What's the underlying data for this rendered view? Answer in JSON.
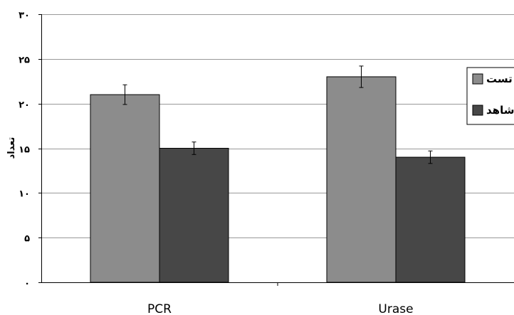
{
  "chart_data": {
    "type": "bar",
    "title": "",
    "xlabel": "",
    "ylabel": "تعداد",
    "categories": [
      "PCR",
      "Urase"
    ],
    "series": [
      {
        "name": "تست",
        "values": [
          21,
          23
        ],
        "error": [
          1.1,
          1.2
        ],
        "color": "#8c8c8c"
      },
      {
        "name": "شاهد",
        "values": [
          15,
          14
        ],
        "error": [
          0.7,
          0.7
        ],
        "color": "#474747"
      }
    ],
    "ylim": [
      0,
      30
    ],
    "yticks": [
      0,
      5,
      10,
      15,
      20,
      25,
      30
    ],
    "ytick_labels": [
      "٠",
      "۵",
      "١٠",
      "١۵",
      "٢٠",
      "٢۵",
      "٣٠"
    ],
    "grid": true,
    "legend_position": "right"
  }
}
